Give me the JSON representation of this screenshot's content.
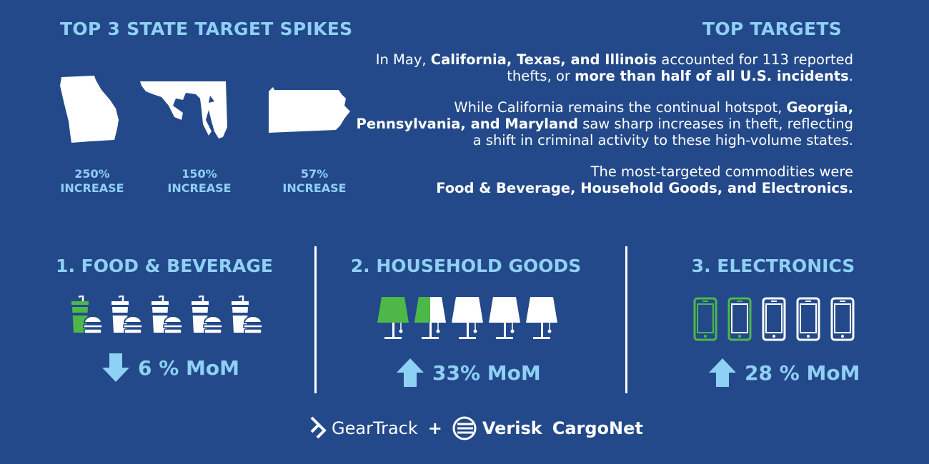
{
  "left": {
    "title": "TOP 3 STATE TARGET SPIKES",
    "states": [
      {
        "name": "Georgia",
        "pct": "250%",
        "label": "INCREASE"
      },
      {
        "name": "Maryland",
        "pct": "150%",
        "label": "INCREASE"
      },
      {
        "name": "Pennsylvania",
        "pct": "57%",
        "label": "INCREASE"
      }
    ]
  },
  "right": {
    "title": "TOP TARGETS",
    "p1": {
      "a": "In May, ",
      "b": "California, Texas, and Illinois",
      "c": " accounted for 113 reported thefts, or ",
      "d": "more than half of all U.S. incidents",
      "e": "."
    },
    "p2": {
      "a": "While California remains the continual hotspot, ",
      "b": "Georgia, Pennsylvania, and Maryland",
      "c": " saw sharp increases in theft, reflecting a shift in criminal activity to these high-volume states."
    },
    "p3": {
      "a": "The most-targeted commodities were ",
      "b": "Food & Beverage, Household Goods, and Electronics."
    }
  },
  "categories": [
    {
      "title": "1. FOOD & BEVERAGE",
      "stat": "6 % MoM",
      "direction": "down",
      "icon": "fast-food-icon",
      "filled": 0.2
    },
    {
      "title": "2. HOUSEHOLD GOODS",
      "stat": "33% MoM",
      "direction": "up",
      "icon": "lamp-icon",
      "filled": 0.3
    },
    {
      "title": "3. ELECTRONICS",
      "stat": "28 % MoM",
      "direction": "up",
      "icon": "smartphone-icon",
      "filled": 0.28
    }
  ],
  "footer": {
    "brand1": "GearTrack",
    "plus": "+",
    "brand2": "Verisk",
    "brand3": "CargoNet"
  },
  "colors": {
    "background": "#23498a",
    "accent": "#8fd0f5",
    "green": "#4db848"
  }
}
